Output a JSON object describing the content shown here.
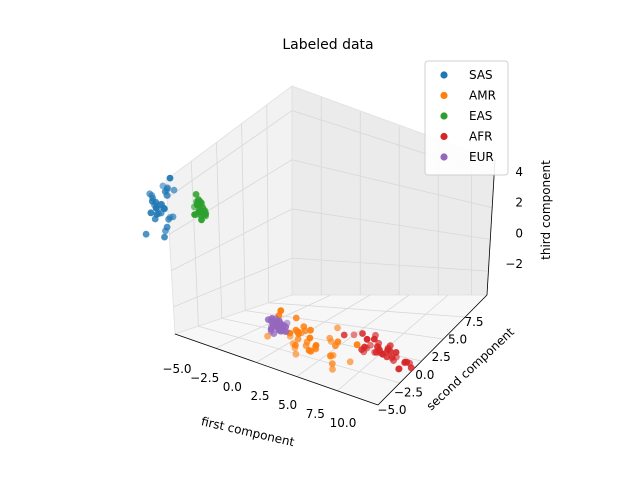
{
  "chart_data": {
    "type": "scatter",
    "projection": "3d",
    "title": "Labeled data",
    "xlabel": "first component",
    "ylabel": "second component",
    "zlabel": "third component",
    "xlim": [
      -6,
      12
    ],
    "ylim": [
      -7,
      9
    ],
    "zlim": [
      -3.5,
      5
    ],
    "x_ticks": [
      "−5.0",
      "−2.5",
      "0.0",
      "2.5",
      "5.0",
      "7.5",
      "10.0"
    ],
    "y_ticks": [
      "−5.0",
      "−2.5",
      "0.0",
      "2.5",
      "5.0",
      "7.5"
    ],
    "z_ticks": [
      "−2",
      "0",
      "2",
      "4"
    ],
    "grid": true,
    "legend_position": "top-right",
    "series": [
      {
        "name": "SAS",
        "color": "#1f77b4",
        "center": [
          -5.0,
          6.5,
          2.0
        ],
        "spread": [
          0.6,
          0.6,
          1.0
        ],
        "count": 32
      },
      {
        "name": "AMR",
        "color": "#ff7f0e",
        "center": [
          1.5,
          -1.0,
          -1.5
        ],
        "spread": [
          1.8,
          2.5,
          0.8
        ],
        "count": 40
      },
      {
        "name": "EAS",
        "color": "#2ca02c",
        "center": [
          -1.0,
          7.5,
          2.5
        ],
        "spread": [
          0.4,
          0.4,
          0.4
        ],
        "count": 30
      },
      {
        "name": "AFR",
        "color": "#d62728",
        "center": [
          9.5,
          1.5,
          -1.0
        ],
        "spread": [
          1.0,
          1.5,
          0.4
        ],
        "count": 38
      },
      {
        "name": "EUR",
        "color": "#9467bd",
        "center": [
          -4.5,
          -5.0,
          -1.0
        ],
        "spread": [
          0.5,
          0.6,
          0.4
        ],
        "count": 30
      }
    ]
  }
}
